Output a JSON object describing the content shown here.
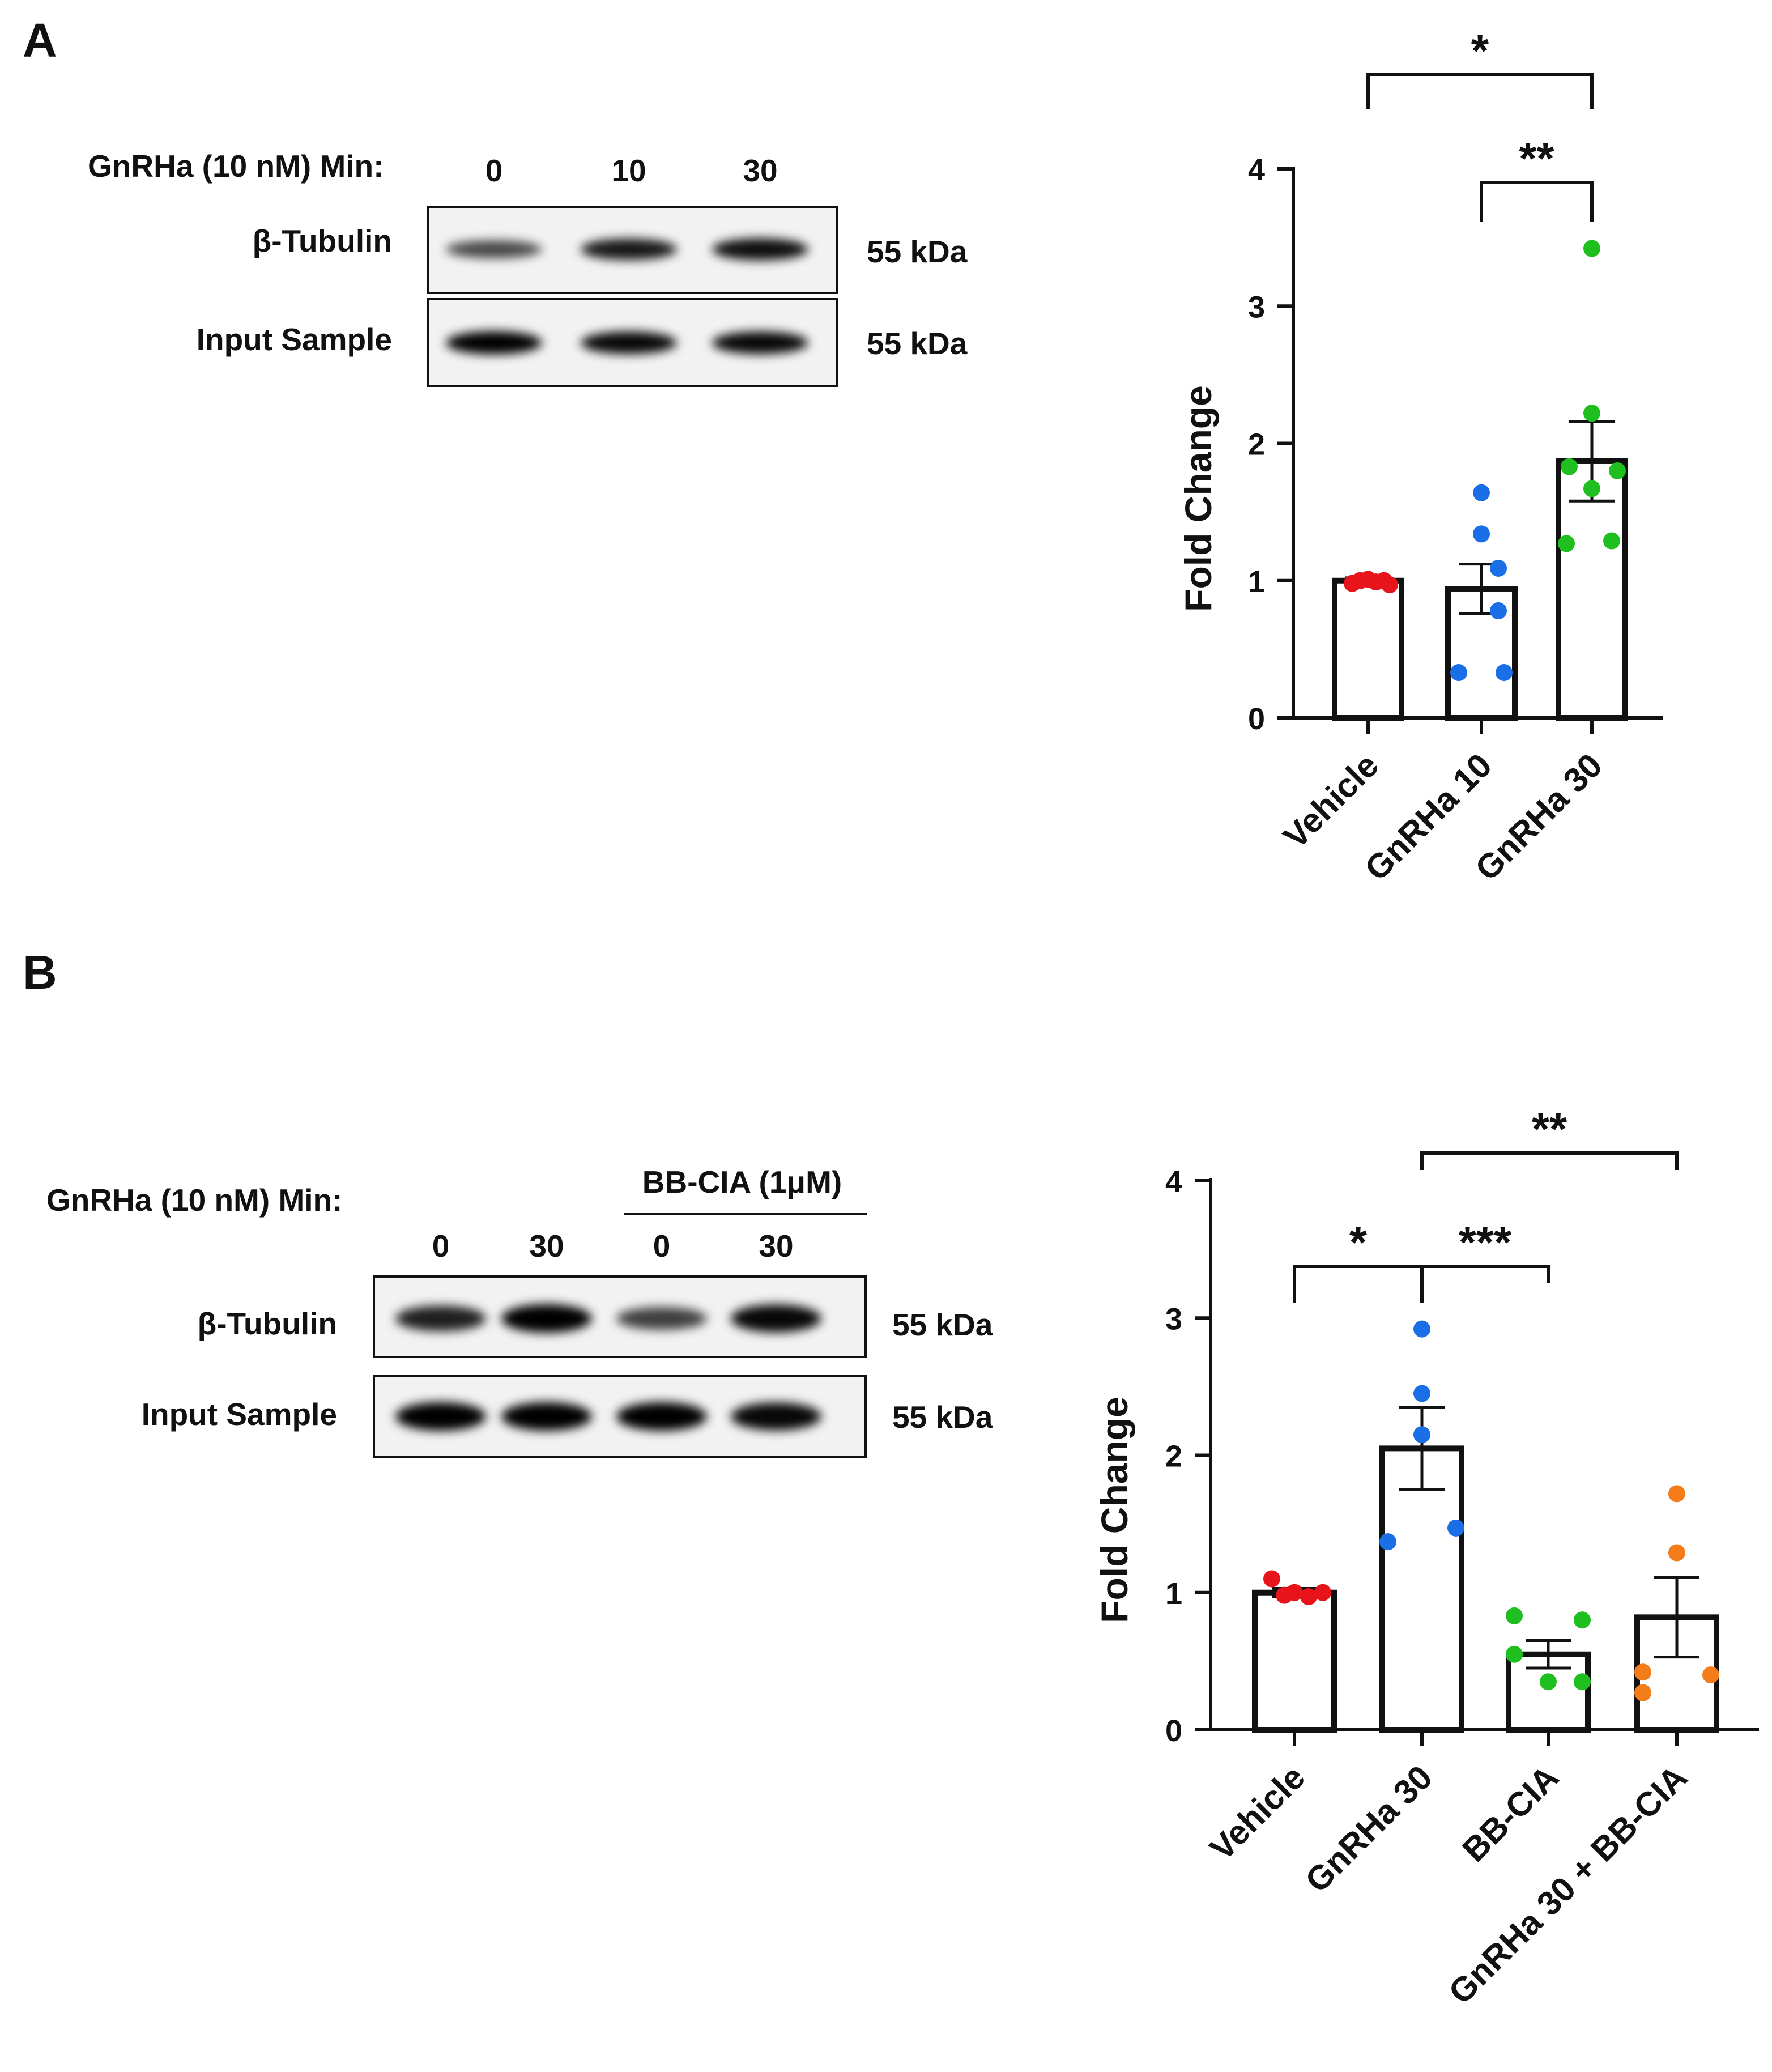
{
  "panels": [
    {
      "letter": "A",
      "blot": {
        "treatment_label": "GnRHa (10 nM) Min:",
        "group_label": "",
        "lanes": [
          "0",
          "10",
          "30"
        ],
        "rows": [
          {
            "name": "β-Tubulin",
            "size": "55 kDa",
            "intensity": [
              0.55,
              0.85,
              0.9
            ]
          },
          {
            "name": "Input Sample",
            "size": "55 kDa",
            "intensity": [
              1.0,
              0.95,
              0.95
            ]
          }
        ]
      }
    },
    {
      "letter": "B",
      "blot": {
        "treatment_label": "GnRHa (10 nM) Min:",
        "group_label": "BB-CIA (1μM)",
        "lanes": [
          "0",
          "30",
          "0",
          "30"
        ],
        "rows": [
          {
            "name": "β-Tubulin",
            "size": "55 kDa",
            "intensity": [
              0.8,
              1.0,
              0.6,
              0.95
            ]
          },
          {
            "name": "Input Sample",
            "size": "55 kDa",
            "intensity": [
              1.0,
              1.0,
              1.0,
              0.95
            ]
          }
        ]
      }
    }
  ],
  "chart_data": [
    {
      "type": "bar",
      "title": "",
      "xlabel": "",
      "ylabel": "Fold Change",
      "ylim": [
        0,
        4
      ],
      "yticks": [
        0,
        1,
        2,
        3,
        4
      ],
      "grid": false,
      "categories": [
        "Vehicle",
        "GnRHa 10",
        "GnRHa 30"
      ],
      "values": [
        1.0,
        0.94,
        1.87
      ],
      "sem": [
        0.02,
        0.18,
        0.29
      ],
      "point_colors": [
        "#e8141b",
        "#1a6ee6",
        "#1fbf1f"
      ],
      "points": [
        [
          0.98,
          1.0,
          1.01,
          0.99,
          1.0,
          0.97
        ],
        [
          1.64,
          1.34,
          1.09,
          0.78,
          0.33,
          0.33
        ],
        [
          3.42,
          2.22,
          1.83,
          1.8,
          1.67,
          1.27,
          1.29
        ]
      ],
      "significance": [
        {
          "from": 0,
          "to": 2,
          "label": "*"
        },
        {
          "from": 1,
          "to": 2,
          "label": "**"
        }
      ]
    },
    {
      "type": "bar",
      "title": "",
      "xlabel": "",
      "ylabel": "Fold Change",
      "ylim": [
        0,
        4
      ],
      "yticks": [
        0,
        1,
        2,
        3,
        4
      ],
      "grid": false,
      "categories": [
        "Vehicle",
        "GnRHa 30",
        "BB-CIA",
        "GnRHa 30 + BB-CIA"
      ],
      "values": [
        1.0,
        2.05,
        0.55,
        0.82
      ],
      "sem": [
        0.03,
        0.3,
        0.1,
        0.29
      ],
      "point_colors": [
        "#e8141b",
        "#1a6ee6",
        "#1fbf1f",
        "#f47c1a"
      ],
      "points": [
        [
          1.1,
          0.98,
          1.0,
          0.97,
          1.0
        ],
        [
          2.92,
          2.45,
          2.15,
          1.37,
          1.47
        ],
        [
          0.83,
          0.8,
          0.35,
          0.55,
          0.35
        ],
        [
          1.72,
          1.29,
          0.42,
          0.27,
          0.4
        ]
      ],
      "significance": [
        {
          "from": 0,
          "to": 1,
          "label": "*"
        },
        {
          "from": 1,
          "to": 2,
          "label": "***"
        },
        {
          "from": 1,
          "to": 3,
          "label": "**"
        }
      ]
    }
  ]
}
